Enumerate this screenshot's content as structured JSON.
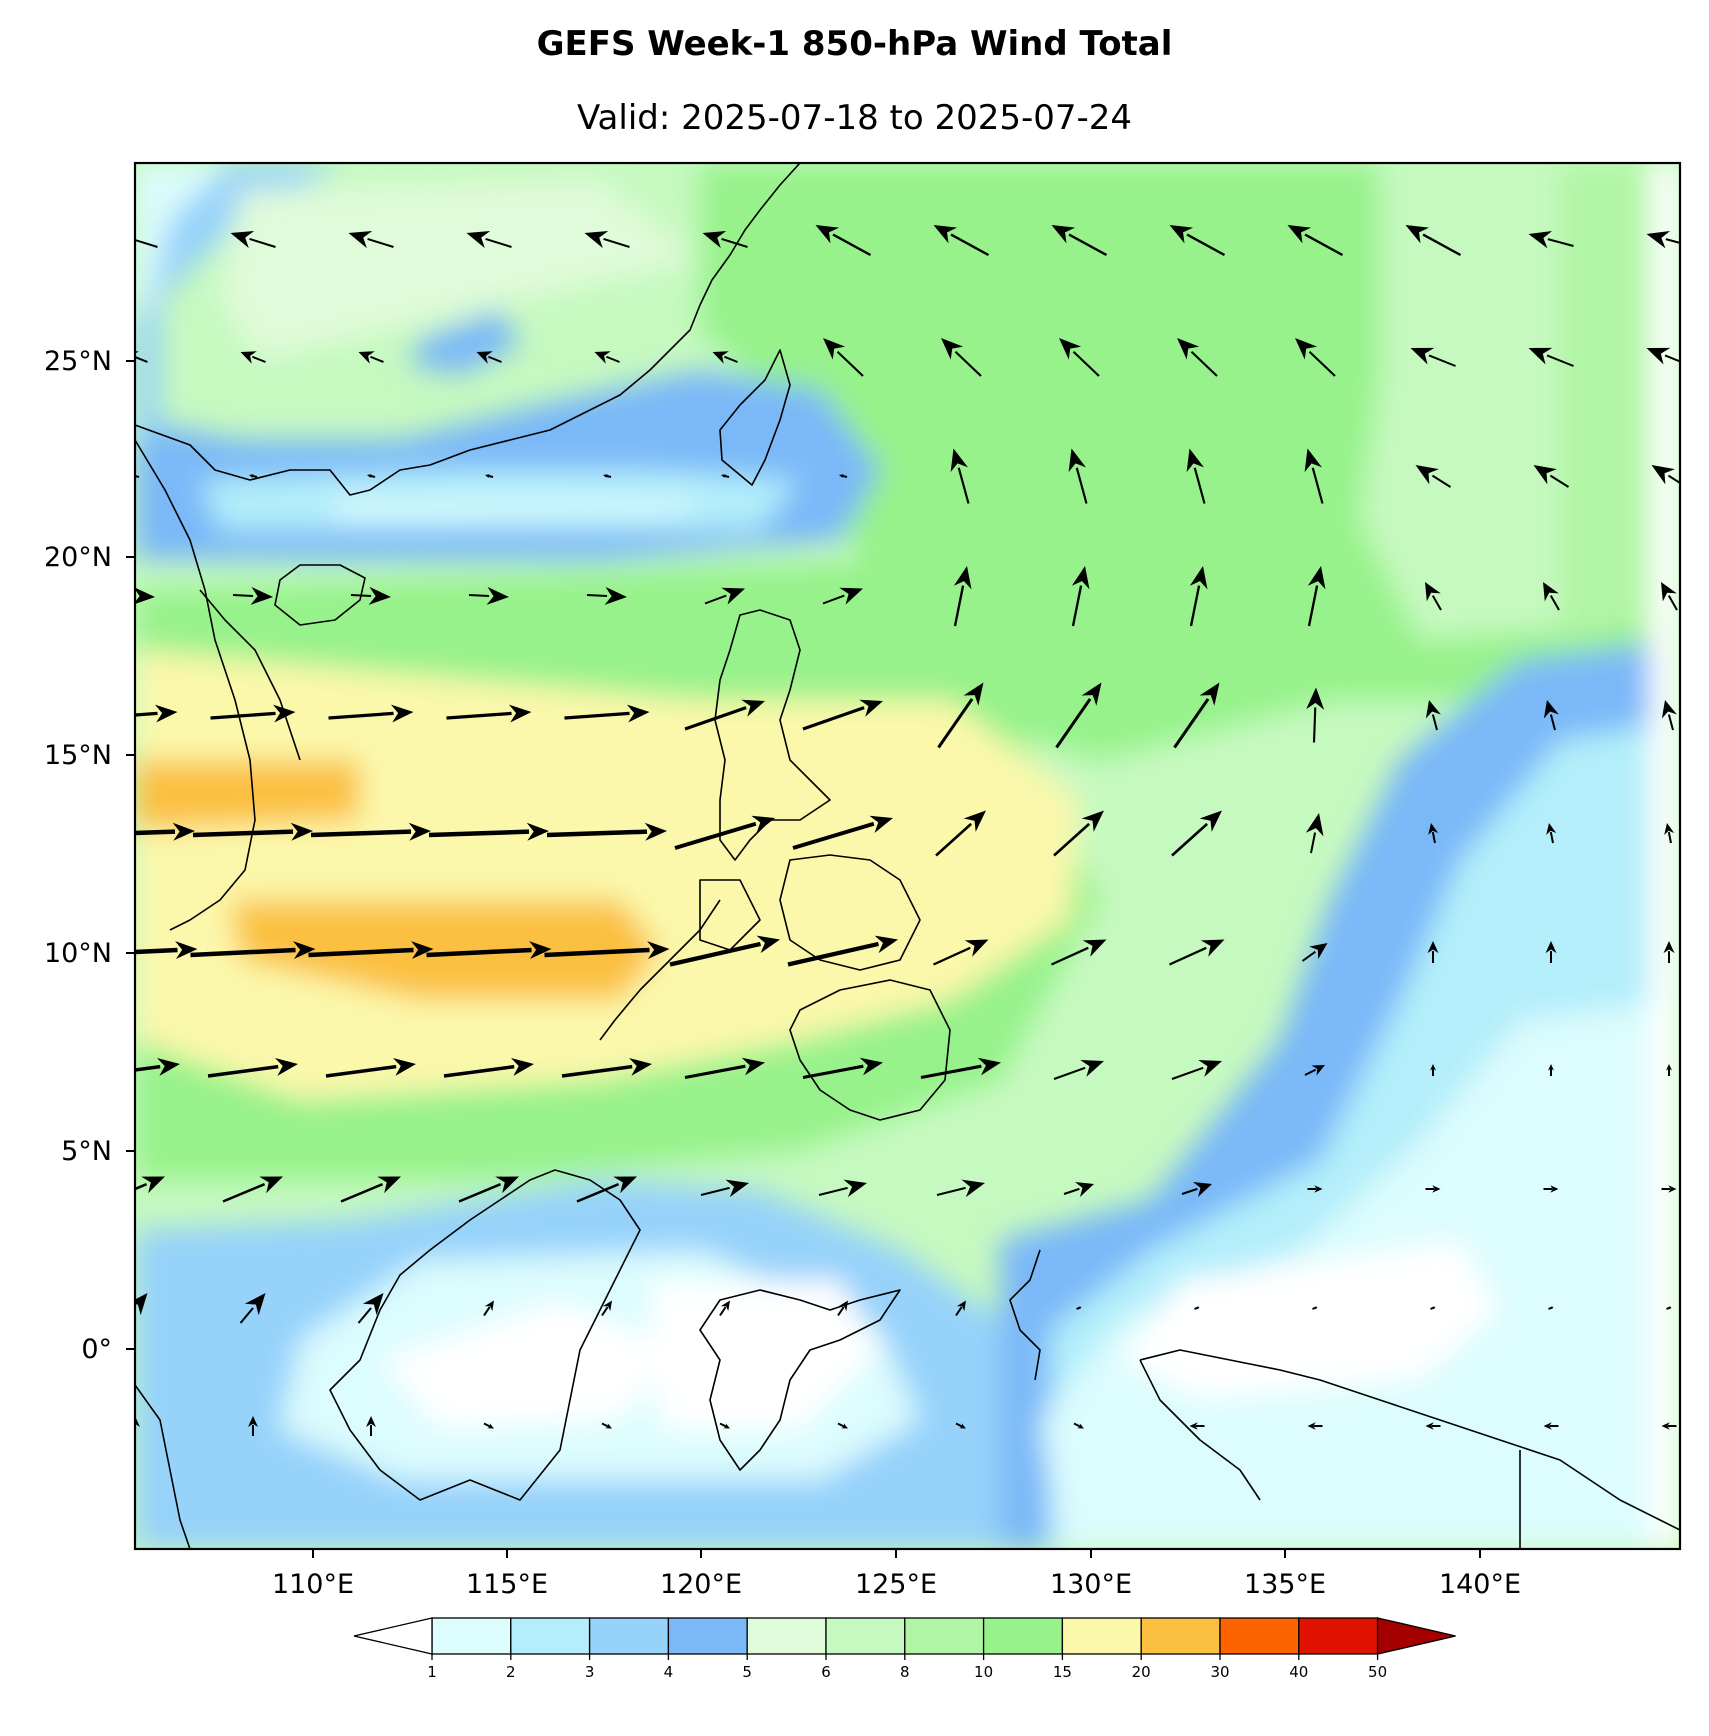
{
  "title": "GEFS Week-1 850-hPa Wind Total",
  "subtitle": "Valid: 2025-07-18 to 2025-07-24",
  "lon_ticks": [
    "110°E",
    "115°E",
    "120°E",
    "125°E",
    "130°E",
    "135°E",
    "140°E"
  ],
  "lat_ticks": [
    "25°N",
    "20°N",
    "15°N",
    "10°N",
    "5°N",
    "0°"
  ],
  "extent": {
    "lon": [
      105.3,
      144.8
    ],
    "lat": [
      -5.0,
      30.5
    ]
  },
  "colorbar": {
    "levels": [
      "1",
      "2",
      "3",
      "4",
      "5",
      "6",
      "8",
      "10",
      "15",
      "20",
      "30",
      "40",
      "50"
    ],
    "colors": [
      "#dcfcfd",
      "#b3eefa",
      "#96d2fa",
      "#7ab8f8",
      "#e0fbd9",
      "#c6f9c0",
      "#b0f5a4",
      "#97f28b",
      "#fbf8ab",
      "#fbc040",
      "#fd6300",
      "#e11300",
      "#a50000"
    ],
    "under_color": "#ffffff",
    "over_color": "#a50000"
  },
  "background_colors": {
    "coast": "#000000",
    "ocean_frame": "#ffffff"
  }
}
